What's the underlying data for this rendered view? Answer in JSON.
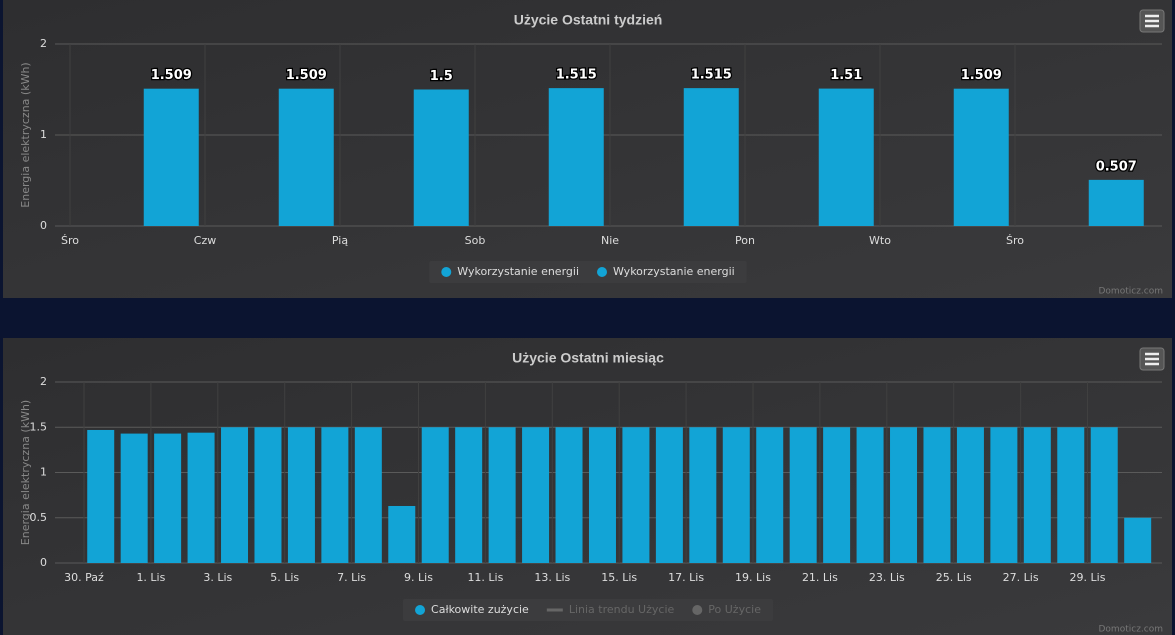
{
  "chart_data": [
    {
      "type": "bar",
      "title": "Użycie Ostatni tydzień",
      "y_label": "Energia elektryczna (kWh)",
      "categories": [
        "Śro",
        "Czw",
        "Pią",
        "Sob",
        "Nie",
        "Pon",
        "Wto",
        "Śro"
      ],
      "values": [
        1.509,
        1.509,
        1.5,
        1.515,
        1.515,
        1.51,
        1.509,
        0.507
      ],
      "color": "#12a4d6",
      "data_labels": true,
      "ylim": [
        0,
        2
      ],
      "yticks": [
        0,
        1,
        2
      ],
      "grid": true,
      "legend": [
        {
          "name": "Wykorzystanie energii",
          "color": "#12a4d6",
          "symbol": "circle"
        },
        {
          "name": "Wykorzystanie energii",
          "color": "#12a4d6",
          "symbol": "circle"
        }
      ],
      "credit": "Domoticz.com"
    },
    {
      "type": "bar",
      "title": "Użycie Ostatni miesiąc",
      "y_label": "Energia elektryczna (kWh)",
      "categories": [
        "30. Paź",
        null,
        "1. Lis",
        null,
        "3. Lis",
        null,
        "5. Lis",
        null,
        "7. Lis",
        null,
        "9. Lis",
        null,
        "11. Lis",
        null,
        "13. Lis",
        null,
        "15. Lis",
        null,
        "17. Lis",
        null,
        "19. Lis",
        null,
        "21. Lis",
        null,
        "23. Lis",
        null,
        "25. Lis",
        null,
        "27. Lis",
        null,
        "29. Lis",
        null
      ],
      "values": [
        1.47,
        1.43,
        1.43,
        1.44,
        1.5,
        1.5,
        1.5,
        1.5,
        1.5,
        0.63,
        1.5,
        1.5,
        1.5,
        1.5,
        1.5,
        1.5,
        1.5,
        1.5,
        1.5,
        1.5,
        1.5,
        1.5,
        1.5,
        1.5,
        1.5,
        1.5,
        1.5,
        1.5,
        1.5,
        1.5,
        1.5,
        0.5
      ],
      "color": "#12a4d6",
      "data_labels": false,
      "ylim": [
        0,
        2
      ],
      "yticks": [
        0,
        0.5,
        1,
        1.5,
        2
      ],
      "grid": true,
      "legend": [
        {
          "name": "Całkowite zużycie",
          "color": "#12a4d6",
          "symbol": "circle",
          "visible": true
        },
        {
          "name": "Linia trendu Użycie",
          "color": "#666666",
          "symbol": "line",
          "visible": false
        },
        {
          "name": "Po Użycie",
          "color": "#666666",
          "symbol": "circle",
          "visible": false
        }
      ],
      "credit": "Domoticz.com"
    }
  ]
}
